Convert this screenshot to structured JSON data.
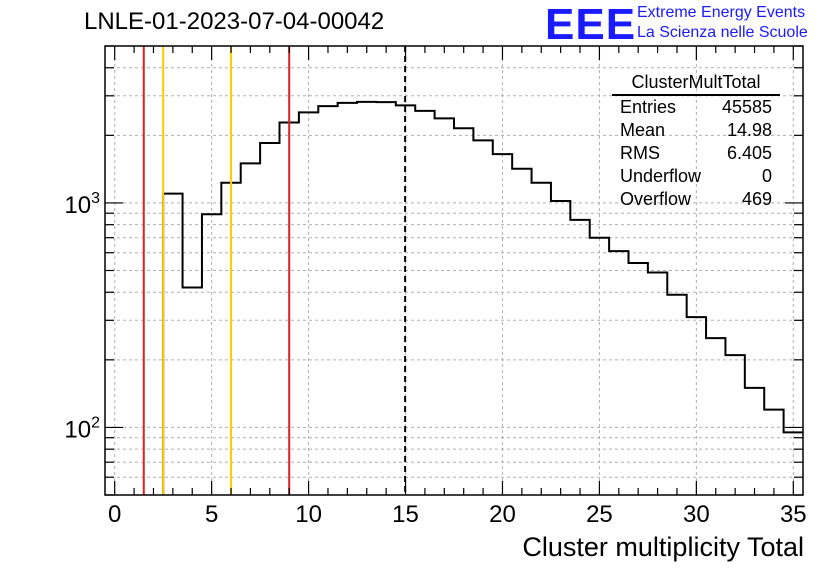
{
  "title": "LNLE-01-2023-07-04-00042",
  "logo": {
    "letters": "EEE",
    "line1": "Extreme Energy Events",
    "line2": "La Scienza nelle Scuole",
    "color": "#1a1aff"
  },
  "stats_box": {
    "title": "ClusterMultTotal",
    "rows": [
      {
        "label": "Entries",
        "value": "45585"
      },
      {
        "label": "Mean",
        "value": "14.98"
      },
      {
        "label": "RMS",
        "value": "6.405"
      },
      {
        "label": "Underflow",
        "value": "0"
      },
      {
        "label": "Overflow",
        "value": "469"
      }
    ]
  },
  "chart_data": {
    "type": "histogram",
    "xlabel": "Cluster multiplicity Total",
    "ylabel": "",
    "xlim": [
      -0.5,
      35.5
    ],
    "ylim": [
      50,
      5000
    ],
    "yscale": "log",
    "grid": true,
    "xticks": [
      0,
      5,
      10,
      15,
      20,
      25,
      30,
      35
    ],
    "yticks": [
      {
        "value": 100,
        "label": "10",
        "exp": "2"
      },
      {
        "value": 1000,
        "label": "10",
        "exp": "3"
      }
    ],
    "bin_width": 1,
    "bin_starts": [
      2.5,
      3.5,
      4.5,
      5.5,
      6.5,
      7.5,
      8.5,
      9.5,
      10.5,
      11.5,
      12.5,
      13.5,
      14.5,
      15.5,
      16.5,
      17.5,
      18.5,
      19.5,
      20.5,
      21.5,
      22.5,
      23.5,
      24.5,
      25.5,
      26.5,
      27.5,
      28.5,
      29.5,
      30.5,
      31.5,
      32.5,
      33.5,
      34.5
    ],
    "counts": [
      1100,
      420,
      890,
      1230,
      1500,
      1850,
      2280,
      2530,
      2700,
      2790,
      2820,
      2810,
      2720,
      2570,
      2380,
      2150,
      1900,
      1650,
      1420,
      1230,
      1020,
      840,
      700,
      610,
      540,
      490,
      390,
      310,
      250,
      210,
      150,
      120,
      95
    ],
    "markers": [
      {
        "x": 1.5,
        "color": "#e02020",
        "style": "solid"
      },
      {
        "x": 2.5,
        "color": "#ffcc00",
        "style": "solid"
      },
      {
        "x": 6,
        "color": "#ffcc00",
        "style": "solid"
      },
      {
        "x": 9,
        "color": "#e02020",
        "style": "solid"
      },
      {
        "x": 14.98,
        "color": "#000000",
        "style": "dashed"
      }
    ]
  }
}
